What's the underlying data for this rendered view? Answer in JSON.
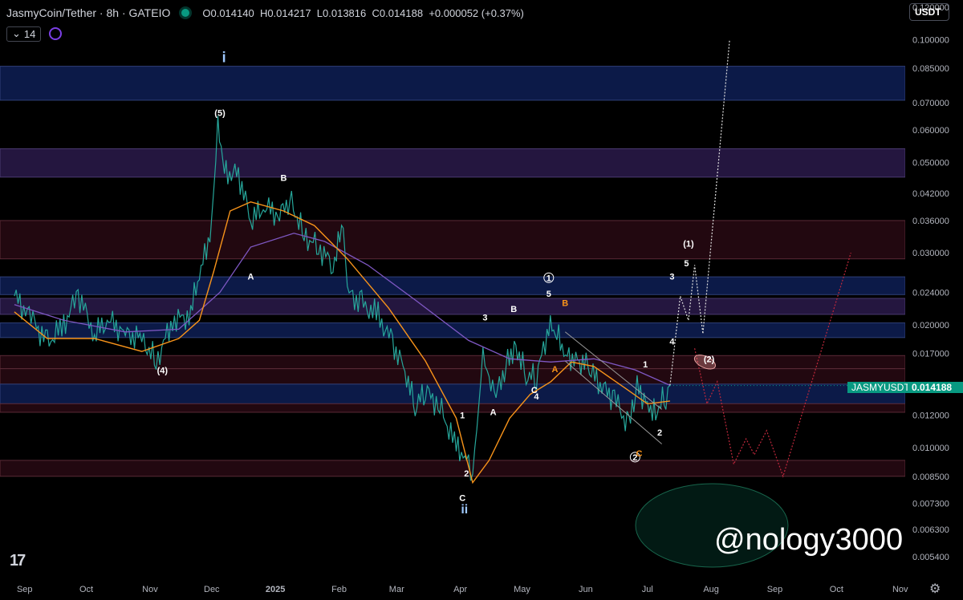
{
  "header": {
    "symbol": "JasmyCoin/Tether · 8h · GATEIO",
    "open": "O0.014140",
    "high": "H0.014217",
    "low": "L0.013816",
    "close": "C0.014188",
    "change": "+0.000052 (+0.37%)"
  },
  "indicator": {
    "toggle": "⌄",
    "length": "14"
  },
  "currency": "USDT",
  "symbol_tag": {
    "name": "JASMYUSDT",
    "price": "0.014188"
  },
  "watermark": "@nology3000",
  "colors": {
    "up": "#26a69a",
    "down": "#ef5350",
    "ema_fast": "#f7931a",
    "ema_slow": "#7e57c2",
    "blue_zone": "#0d1d4f",
    "purple_zone": "#2a1a4a",
    "red_zone": "#2a0a12",
    "accent": "#089981"
  },
  "chart_data": {
    "type": "line",
    "scale": "log",
    "ylim": [
      0.0048,
      0.125
    ],
    "y_ticks": [
      "0.120000",
      "0.100000",
      "0.085000",
      "0.070000",
      "0.060000",
      "0.050000",
      "0.042000",
      "0.036000",
      "0.030000",
      "0.024000",
      "0.020000",
      "0.017000",
      "0.012000",
      "0.010000",
      "0.008500",
      "0.007300",
      "0.006300",
      "0.005400"
    ],
    "x_ticks": [
      "Sep",
      "Oct",
      "Nov",
      "Dec",
      "2025",
      "Feb",
      "Mar",
      "Apr",
      "May",
      "Jun",
      "Jul",
      "Aug",
      "Sep",
      "Oct",
      "Nov"
    ],
    "series": [
      {
        "points": [
          [
            "2024-08-27",
            0.0235
          ],
          [
            "2024-09-05",
            0.0205
          ],
          [
            "2024-09-12",
            0.018
          ],
          [
            "2024-09-20",
            0.02
          ],
          [
            "2024-09-27",
            0.0238
          ],
          [
            "2024-10-05",
            0.019
          ],
          [
            "2024-10-12",
            0.0205
          ],
          [
            "2024-10-20",
            0.019
          ],
          [
            "2024-10-28",
            0.0185
          ],
          [
            "2024-11-04",
            0.0162
          ],
          [
            "2024-11-12",
            0.0205
          ],
          [
            "2024-11-20",
            0.021
          ],
          [
            "2024-11-25",
            0.026
          ],
          [
            "2024-12-01",
            0.035
          ],
          [
            "2024-12-04",
            0.06
          ],
          [
            "2024-12-08",
            0.047
          ],
          [
            "2024-12-14",
            0.047
          ],
          [
            "2024-12-20",
            0.036
          ],
          [
            "2024-12-27",
            0.039
          ],
          [
            "2025-01-03",
            0.037
          ],
          [
            "2025-01-08",
            0.041
          ],
          [
            "2025-01-15",
            0.033
          ],
          [
            "2025-01-22",
            0.031
          ],
          [
            "2025-01-29",
            0.028
          ],
          [
            "2025-02-03",
            0.035
          ],
          [
            "2025-02-05",
            0.024
          ],
          [
            "2025-02-12",
            0.0225
          ],
          [
            "2025-02-20",
            0.021
          ],
          [
            "2025-02-27",
            0.018
          ],
          [
            "2025-03-05",
            0.0155
          ],
          [
            "2025-03-10",
            0.0125
          ],
          [
            "2025-03-15",
            0.0138
          ],
          [
            "2025-03-22",
            0.0126
          ],
          [
            "2025-03-30",
            0.01
          ],
          [
            "2025-04-04",
            0.0095
          ],
          [
            "2025-04-07",
            0.0088
          ],
          [
            "2025-04-09",
            0.0112
          ],
          [
            "2025-04-12",
            0.0172
          ],
          [
            "2025-04-15",
            0.014
          ],
          [
            "2025-04-20",
            0.0138
          ],
          [
            "2025-04-24",
            0.0165
          ],
          [
            "2025-04-28",
            0.0178
          ],
          [
            "2025-05-03",
            0.015
          ],
          [
            "2025-05-08",
            0.0148
          ],
          [
            "2025-05-14",
            0.0198
          ],
          [
            "2025-05-18",
            0.0188
          ],
          [
            "2025-05-23",
            0.0168
          ],
          [
            "2025-05-28",
            0.0164
          ],
          [
            "2025-06-02",
            0.0158
          ],
          [
            "2025-06-08",
            0.0142
          ],
          [
            "2025-06-15",
            0.0132
          ],
          [
            "2025-06-22",
            0.0112
          ],
          [
            "2025-06-26",
            0.0142
          ],
          [
            "2025-07-01",
            0.0128
          ],
          [
            "2025-07-05",
            0.0122
          ],
          [
            "2025-07-10",
            0.0134
          ],
          [
            "2025-07-12",
            0.0142
          ]
        ]
      },
      {
        "name": "",
        "points": [
          [
            "2024-08-27",
            0.0215
          ],
          [
            "2024-09-12",
            0.0185
          ],
          [
            "2024-10-05",
            0.0185
          ],
          [
            "2024-10-28",
            0.0172
          ],
          [
            "2024-11-15",
            0.0185
          ],
          [
            "2024-11-25",
            0.0205
          ],
          [
            "2024-12-02",
            0.027
          ],
          [
            "2024-12-10",
            0.038
          ],
          [
            "2024-12-20",
            0.04
          ],
          [
            "2025-01-05",
            0.038
          ],
          [
            "2025-01-20",
            0.035
          ],
          [
            "2025-02-05",
            0.029
          ],
          [
            "2025-02-25",
            0.022
          ],
          [
            "2025-03-15",
            0.0163
          ],
          [
            "2025-03-30",
            0.0118
          ],
          [
            "2025-04-07",
            0.0082
          ],
          [
            "2025-04-15",
            0.0093
          ],
          [
            "2025-04-25",
            0.0118
          ],
          [
            "2025-05-05",
            0.0135
          ],
          [
            "2025-05-15",
            0.0145
          ],
          [
            "2025-05-25",
            0.0162
          ],
          [
            "2025-06-05",
            0.0158
          ],
          [
            "2025-06-20",
            0.014
          ],
          [
            "2025-07-01",
            0.0128
          ],
          [
            "2025-07-12",
            0.013
          ]
        ]
      },
      {
        "name": "",
        "points": [
          [
            "2024-08-27",
            0.0224
          ],
          [
            "2024-09-20",
            0.0205
          ],
          [
            "2024-10-20",
            0.0192
          ],
          [
            "2024-11-15",
            0.0195
          ],
          [
            "2024-12-05",
            0.024
          ],
          [
            "2024-12-20",
            0.031
          ],
          [
            "2025-01-10",
            0.0335
          ],
          [
            "2025-01-25",
            0.032
          ],
          [
            "2025-02-15",
            0.028
          ],
          [
            "2025-03-10",
            0.023
          ],
          [
            "2025-04-05",
            0.0183
          ],
          [
            "2025-04-25",
            0.0165
          ],
          [
            "2025-05-15",
            0.0162
          ],
          [
            "2025-06-05",
            0.0165
          ],
          [
            "2025-06-25",
            0.0155
          ],
          [
            "2025-07-12",
            0.0142
          ]
        ]
      },
      {
        "name": "",
        "points": [
          [
            "2025-07-12",
            0.0142
          ],
          [
            "2025-07-17",
            0.0235
          ],
          [
            "2025-07-21",
            0.0205
          ],
          [
            "2025-07-24",
            0.028
          ],
          [
            "2025-07-28",
            0.019
          ],
          [
            "2025-08-10",
            0.1
          ]
        ]
      },
      {
        "name": "",
        "points": [
          [
            "2025-07-24",
            0.0175
          ],
          [
            "2025-07-30",
            0.0128
          ],
          [
            "2025-08-04",
            0.0145
          ],
          [
            "2025-08-12",
            0.0091
          ],
          [
            "2025-08-18",
            0.0105
          ],
          [
            "2025-08-22",
            0.0096
          ],
          [
            "2025-08-28",
            0.011
          ],
          [
            "2025-09-05",
            0.0085
          ],
          [
            "2025-10-08",
            0.03
          ]
        ]
      }
    ],
    "zones": [
      {
        "color": "blue",
        "y": [
          0.071,
          0.086
        ]
      },
      {
        "color": "purple",
        "y": [
          0.046,
          0.054
        ]
      },
      {
        "color": "red",
        "y": [
          0.029,
          0.036
        ]
      },
      {
        "color": "blue",
        "y": [
          0.0237,
          0.0262
        ]
      },
      {
        "color": "purple",
        "y": [
          0.0212,
          0.0232
        ]
      },
      {
        "color": "blue",
        "y": [
          0.0186,
          0.0202
        ]
      },
      {
        "color": "red",
        "y": [
          0.0156,
          0.0168
        ]
      },
      {
        "color": "red",
        "y": [
          0.0143,
          0.0156
        ]
      },
      {
        "color": "blue",
        "y": [
          0.0128,
          0.0143
        ]
      },
      {
        "color": "red",
        "y": [
          0.0122,
          0.0128
        ]
      },
      {
        "color": "red",
        "y": [
          0.0085,
          0.0093
        ]
      }
    ],
    "annotations": [
      {
        "text": "i",
        "date": "2024-12-07",
        "y": 0.088,
        "color": "#9ec8ff",
        "size": 18
      },
      {
        "text": "(5)",
        "date": "2024-12-05",
        "y": 0.065,
        "color": "#ffffff",
        "size": 11
      },
      {
        "text": "B",
        "date": "2025-01-05",
        "y": 0.045,
        "color": "#ffffff",
        "size": 11
      },
      {
        "text": "A",
        "date": "2024-12-20",
        "y": 0.0258,
        "color": "#ffffff",
        "size": 11
      },
      {
        "text": "(4)",
        "date": "2024-11-07",
        "y": 0.0152,
        "color": "#ffffff",
        "size": 11
      },
      {
        "text": "C",
        "date": "2025-04-02",
        "y": 0.0074,
        "color": "#ffffff",
        "size": 11
      },
      {
        "text": "ii",
        "date": "2025-04-03",
        "y": 0.0069,
        "color": "#9ec8ff",
        "size": 16
      },
      {
        "text": "2",
        "date": "2025-04-04",
        "y": 0.0085,
        "color": "#ffffff",
        "size": 11
      },
      {
        "text": "1",
        "date": "2025-04-02",
        "y": 0.0118,
        "color": "#ffffff",
        "size": 11
      },
      {
        "text": "A",
        "date": "2025-04-17",
        "y": 0.012,
        "color": "#ffffff",
        "size": 11
      },
      {
        "text": "3",
        "date": "2025-04-13",
        "y": 0.0205,
        "color": "#ffffff",
        "size": 11
      },
      {
        "text": "B",
        "date": "2025-04-27",
        "y": 0.0215,
        "color": "#ffffff",
        "size": 11
      },
      {
        "text": "C",
        "date": "2025-05-07",
        "y": 0.0136,
        "color": "#ffffff",
        "size": 11
      },
      {
        "text": "4",
        "date": "2025-05-08",
        "y": 0.0131,
        "color": "#ffffff",
        "size": 11
      },
      {
        "text": "1",
        "date": "2025-05-14",
        "y": 0.0256,
        "color": "#ffffff",
        "size": 11,
        "circled": true
      },
      {
        "text": "5",
        "date": "2025-05-14",
        "y": 0.0234,
        "color": "#ffffff",
        "size": 11
      },
      {
        "text": "B",
        "date": "2025-05-22",
        "y": 0.0222,
        "color": "#f7931a",
        "size": 11
      },
      {
        "text": "A",
        "date": "2025-05-17",
        "y": 0.0153,
        "color": "#f7931a",
        "size": 11
      },
      {
        "text": "2",
        "date": "2025-06-25",
        "y": 0.0093,
        "color": "#ffffff",
        "size": 11,
        "circled": true
      },
      {
        "text": "C",
        "date": "2025-06-27",
        "y": 0.0095,
        "color": "#f7931a",
        "size": 11
      },
      {
        "text": "1",
        "date": "2025-06-30",
        "y": 0.0157,
        "color": "#ffffff",
        "size": 11
      },
      {
        "text": "2",
        "date": "2025-07-07",
        "y": 0.0107,
        "color": "#ffffff",
        "size": 11
      },
      {
        "text": "4",
        "date": "2025-07-13",
        "y": 0.0179,
        "color": "#ffffff",
        "size": 11
      },
      {
        "text": "3",
        "date": "2025-07-13",
        "y": 0.0258,
        "color": "#ffffff",
        "size": 11
      },
      {
        "text": "5",
        "date": "2025-07-20",
        "y": 0.0278,
        "color": "#ffffff",
        "size": 11
      },
      {
        "text": "(1)",
        "date": "2025-07-21",
        "y": 0.0311,
        "color": "#ffffff",
        "size": 11
      },
      {
        "text": "(2)",
        "date": "2025-07-31",
        "y": 0.0162,
        "color": "#ffffff",
        "size": 11
      }
    ]
  }
}
